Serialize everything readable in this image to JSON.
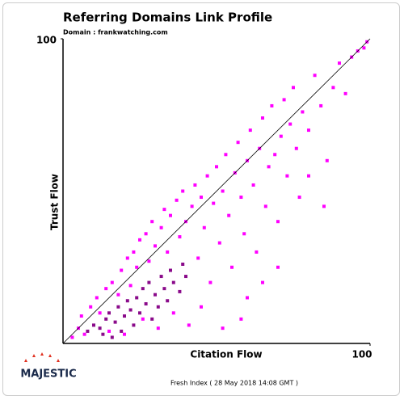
{
  "chart_data": {
    "type": "scatter",
    "title": "Referring Domains Link Profile",
    "subtitle": "Domain : frankwatching.com",
    "x_label": "Citation Flow",
    "y_label": "Trust Flow",
    "footer": "Fresh Index ( 28 May 2018 14:08 GMT )",
    "logo": "MAJESTIC",
    "xlim": [
      0,
      100
    ],
    "ylim": [
      0,
      100
    ],
    "xticks": [
      100
    ],
    "yticks": [
      100
    ],
    "diagonal": true,
    "series": [
      {
        "color": "#ff00ff",
        "x": [
          3,
          5,
          6,
          7,
          9,
          11,
          12,
          14,
          15,
          16,
          18,
          19,
          20,
          21,
          22,
          23,
          24,
          25,
          26,
          27,
          28,
          29,
          30,
          31,
          32,
          33,
          34,
          35,
          36,
          37,
          38,
          39,
          40,
          41,
          42,
          43,
          44,
          45,
          46,
          47,
          48,
          49,
          50,
          51,
          52,
          53,
          54,
          55,
          56,
          57,
          58,
          59,
          60,
          61,
          62,
          63,
          64,
          65,
          66,
          67,
          68,
          69,
          70,
          71,
          72,
          73,
          74,
          75,
          76,
          77,
          78,
          80,
          82,
          84,
          86,
          88,
          90,
          92,
          94,
          96,
          98,
          99,
          60,
          65,
          70,
          58,
          45,
          52,
          80,
          85
        ],
        "values": [
          2,
          5,
          9,
          3,
          12,
          15,
          10,
          18,
          4,
          20,
          16,
          24,
          3,
          28,
          19,
          30,
          25,
          34,
          8,
          36,
          27,
          40,
          32,
          5,
          38,
          44,
          30,
          42,
          10,
          47,
          35,
          50,
          40,
          6,
          45,
          52,
          28,
          48,
          38,
          55,
          20,
          46,
          58,
          33,
          50,
          62,
          42,
          25,
          56,
          66,
          48,
          36,
          60,
          70,
          52,
          30,
          64,
          74,
          45,
          58,
          78,
          62,
          40,
          68,
          80,
          55,
          72,
          84,
          64,
          48,
          76,
          70,
          88,
          78,
          60,
          84,
          92,
          82,
          94,
          96,
          97,
          99,
          15,
          20,
          25,
          8,
          12,
          5,
          55,
          45
        ]
      },
      {
        "color": "#8a0a8a",
        "x": [
          8,
          10,
          12,
          14,
          15,
          17,
          18,
          20,
          21,
          22,
          24,
          25,
          26,
          27,
          28,
          30,
          31,
          32,
          33,
          34,
          35,
          36,
          38,
          39,
          40,
          13,
          19,
          23,
          29,
          16
        ],
        "values": [
          4,
          6,
          5,
          8,
          10,
          7,
          12,
          9,
          14,
          11,
          15,
          10,
          18,
          13,
          20,
          16,
          12,
          22,
          18,
          14,
          24,
          20,
          17,
          26,
          22,
          3,
          4,
          6,
          8,
          2
        ]
      }
    ]
  }
}
